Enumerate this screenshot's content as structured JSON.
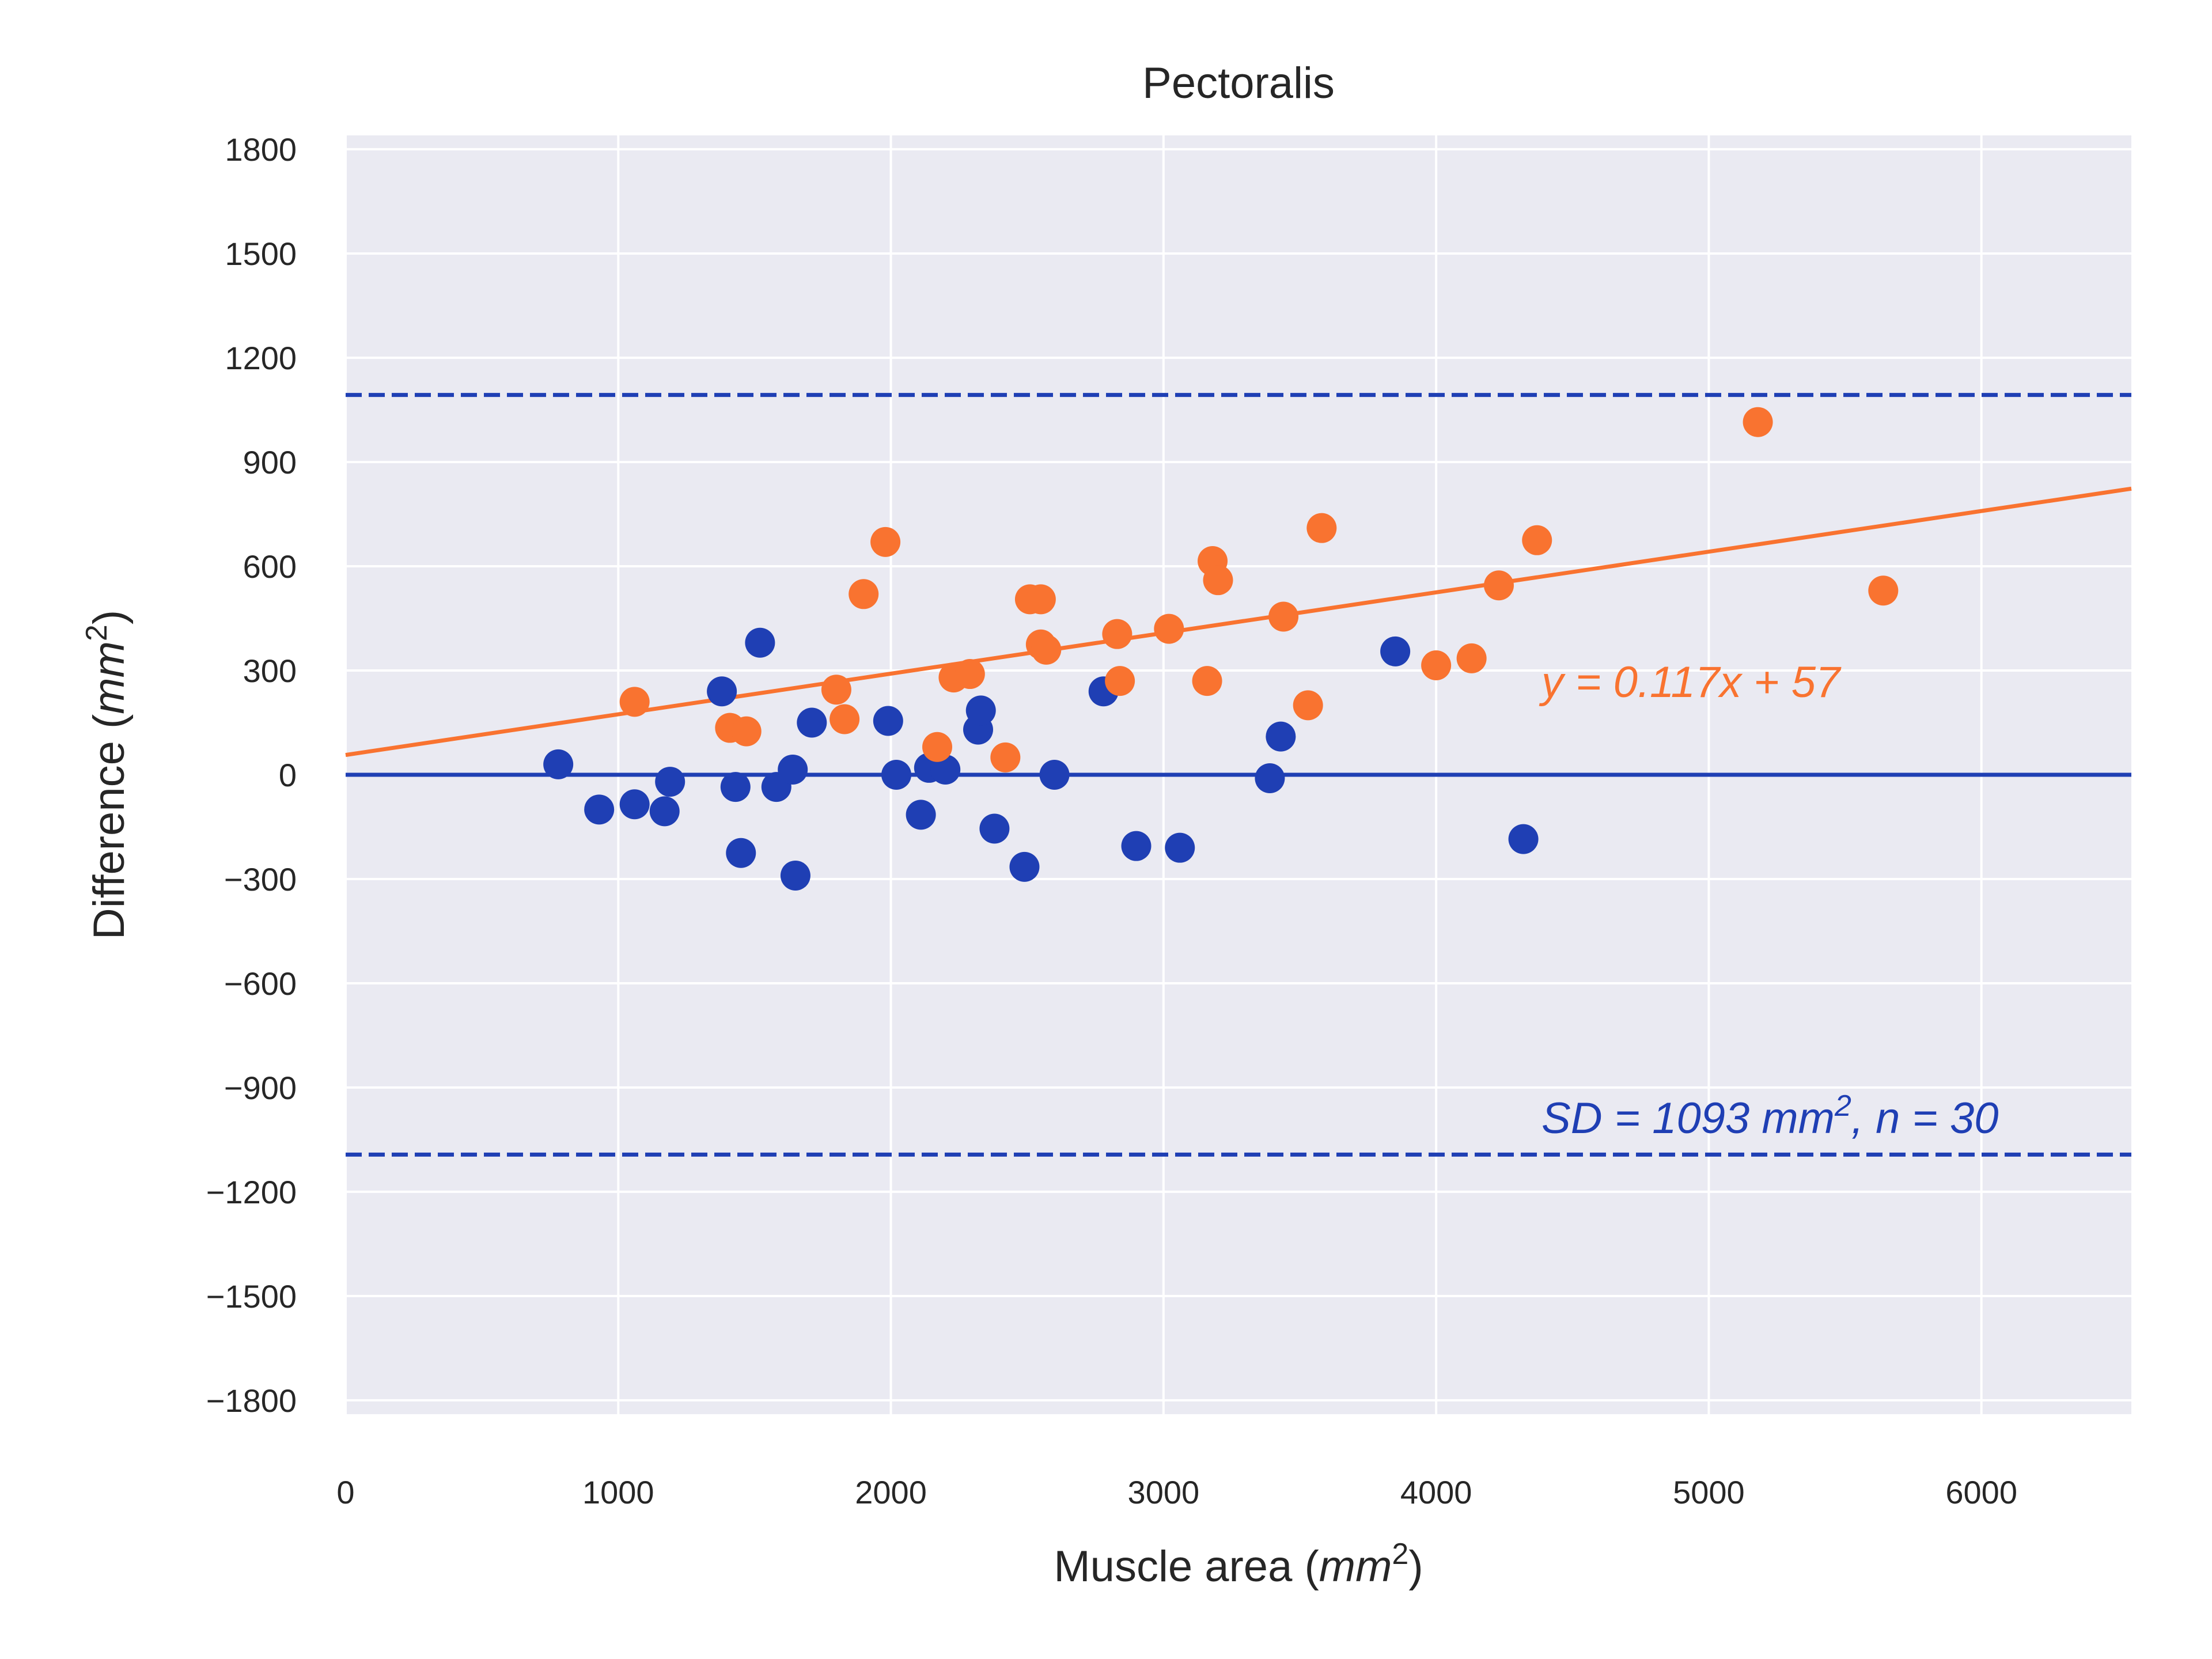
{
  "chart_data": {
    "type": "scatter",
    "title": "Pectoralis",
    "xlabel": {
      "main": "Muscle area (",
      "var": "mm",
      "exp": "2",
      "close": ")"
    },
    "ylabel": {
      "main": "Difference (",
      "var": "mm",
      "exp": "2",
      "close": ")"
    },
    "xlim": [
      0,
      6550
    ],
    "ylim": [
      -1840,
      1840
    ],
    "xticks": [
      0,
      1000,
      2000,
      3000,
      4000,
      5000,
      6000
    ],
    "yticks": [
      1800,
      1500,
      1200,
      900,
      600,
      300,
      0,
      -300,
      -600,
      -900,
      -1200,
      -1500,
      -1800
    ],
    "xtick_labels": [
      "0",
      "1000",
      "2000",
      "3000",
      "4000",
      "5000",
      "6000"
    ],
    "ytick_labels": [
      "1800",
      "1500",
      "1200",
      "900",
      "600",
      "300",
      "0",
      "−300",
      "−600",
      "−900",
      "−1200",
      "−1500",
      "−1800"
    ],
    "grid": true,
    "colors": {
      "blue": "#1f3fb4",
      "orange": "#f97330",
      "background": "#eaeaf2",
      "grid": "#ffffff"
    },
    "series": [
      {
        "color": "#1f3fb4",
        "points": [
          [
            780,
            30
          ],
          [
            930,
            -100
          ],
          [
            1060,
            -85
          ],
          [
            1170,
            -105
          ],
          [
            1190,
            -20
          ],
          [
            1380,
            240
          ],
          [
            1430,
            -35
          ],
          [
            1450,
            -225
          ],
          [
            1520,
            380
          ],
          [
            1580,
            -35
          ],
          [
            1640,
            15
          ],
          [
            1650,
            -290
          ],
          [
            1710,
            150
          ],
          [
            1990,
            155
          ],
          [
            2020,
            0
          ],
          [
            2110,
            -115
          ],
          [
            2140,
            20
          ],
          [
            2200,
            15
          ],
          [
            2320,
            130
          ],
          [
            2330,
            185
          ],
          [
            2380,
            -155
          ],
          [
            2490,
            -265
          ],
          [
            2600,
            0
          ],
          [
            2780,
            240
          ],
          [
            2900,
            -205
          ],
          [
            3060,
            -210
          ],
          [
            3390,
            -10
          ],
          [
            3430,
            110
          ],
          [
            3850,
            355
          ],
          [
            4320,
            -185
          ]
        ]
      },
      {
        "color": "#f97330",
        "points": [
          [
            1060,
            210
          ],
          [
            1410,
            135
          ],
          [
            1470,
            125
          ],
          [
            1800,
            245
          ],
          [
            1830,
            160
          ],
          [
            1900,
            520
          ],
          [
            1980,
            670
          ],
          [
            2170,
            80
          ],
          [
            2230,
            280
          ],
          [
            2290,
            290
          ],
          [
            2420,
            50
          ],
          [
            2510,
            505
          ],
          [
            2550,
            505
          ],
          [
            2550,
            375
          ],
          [
            2570,
            360
          ],
          [
            2830,
            405
          ],
          [
            2840,
            270
          ],
          [
            3020,
            420
          ],
          [
            3160,
            270
          ],
          [
            3180,
            615
          ],
          [
            3200,
            560
          ],
          [
            3440,
            455
          ],
          [
            3530,
            200
          ],
          [
            3580,
            710
          ],
          [
            4000,
            315
          ],
          [
            4130,
            335
          ],
          [
            4230,
            545
          ],
          [
            4370,
            675
          ],
          [
            5180,
            1015
          ],
          [
            5640,
            530
          ]
        ]
      }
    ],
    "regression_line": {
      "slope": 0.117,
      "intercept": 57,
      "color": "#f97330"
    },
    "zero_line": {
      "y": 0,
      "color": "#1f3fb4"
    },
    "limit_lines": {
      "values": [
        1093,
        -1093
      ],
      "style": "dashed",
      "color": "#1f3fb4"
    },
    "annotations": {
      "regression": "y = 0.117x + 57",
      "sd": {
        "pre": "SD = 1093 ",
        "var": "mm",
        "exp": "2",
        "post": ", n = 30"
      }
    }
  }
}
